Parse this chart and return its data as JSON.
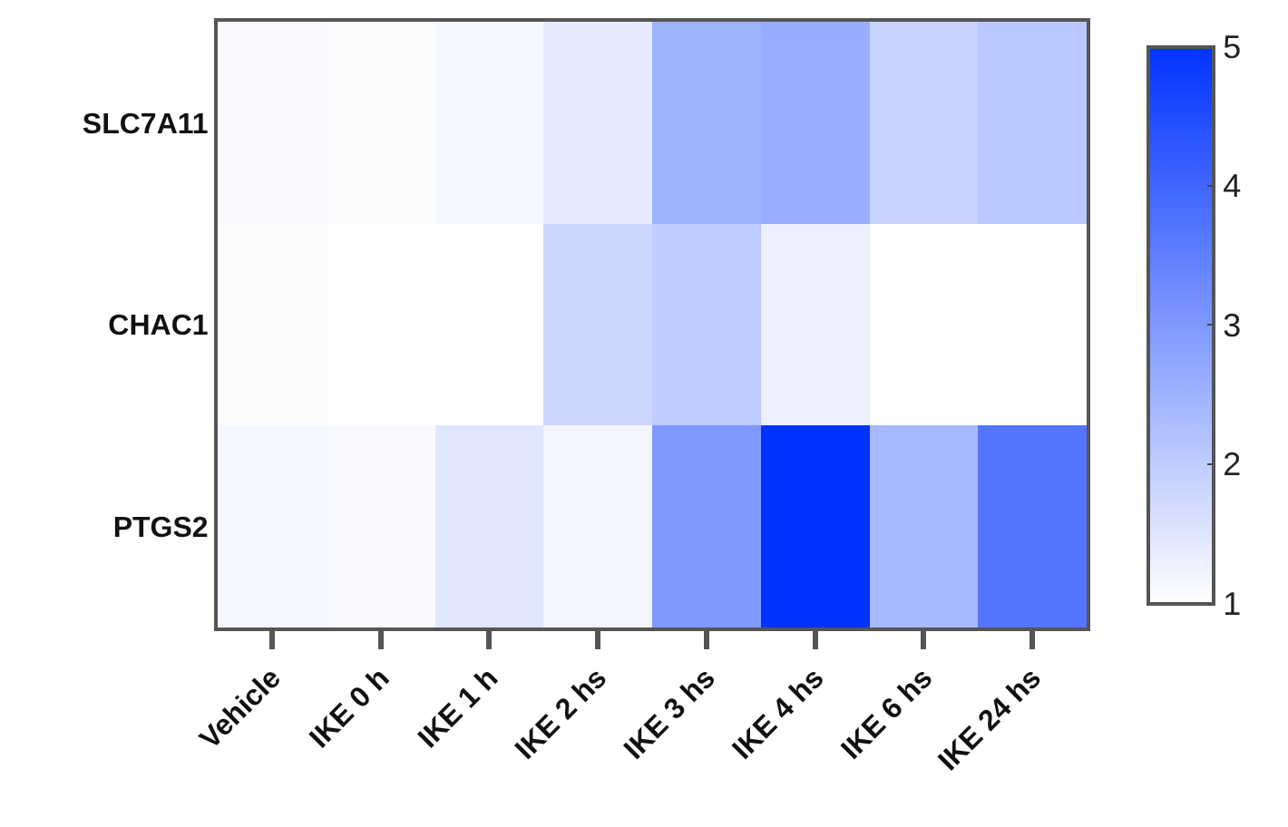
{
  "chart_data": {
    "type": "heatmap",
    "categories": [
      "Vehicle",
      "IKE 0 h",
      "IKE 1 h",
      "IKE 2 hs",
      "IKE 3 hs",
      "IKE 4 hs",
      "IKE 6 hs",
      "IKE 24 hs"
    ],
    "y_categories": [
      "SLC7A11",
      "CHAC1",
      "PTGS2"
    ],
    "cells": [
      [
        1.1,
        1.05,
        1.15,
        1.4,
        2.5,
        2.6,
        1.9,
        2.1
      ],
      [
        1.05,
        1.0,
        1.0,
        1.8,
        2.0,
        1.3,
        1.0,
        1.0
      ],
      [
        1.15,
        1.1,
        1.5,
        1.2,
        3.0,
        5.0,
        2.4,
        3.7
      ]
    ],
    "clim": [
      1,
      5
    ],
    "cticks": [
      1,
      2,
      3,
      4,
      5
    ]
  }
}
